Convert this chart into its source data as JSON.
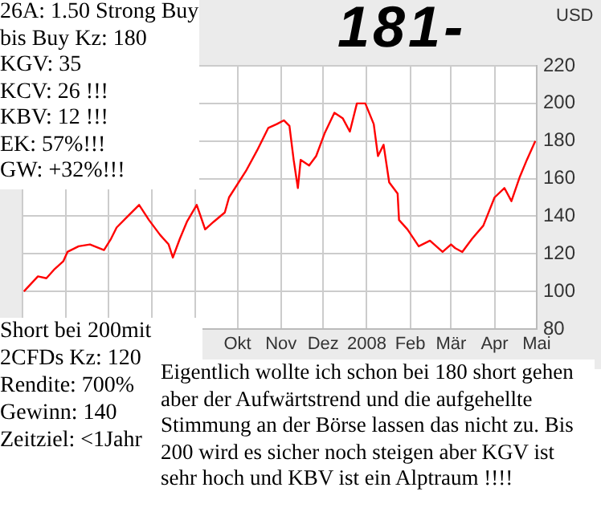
{
  "chart_data": {
    "type": "line",
    "ylabel": "USD",
    "color": "#ff0000",
    "marker": "none",
    "grid": true,
    "x": [
      "2007-05-02",
      "2007-05-12",
      "2007-05-18",
      "2007-05-24",
      "2007-05-30",
      "2007-06-02",
      "2007-06-10",
      "2007-06-18",
      "2007-06-28",
      "2007-07-03",
      "2007-07-07",
      "2007-07-15",
      "2007-07-23",
      "2007-07-30",
      "2007-08-07",
      "2007-08-13",
      "2007-08-16",
      "2007-08-21",
      "2007-08-26",
      "2007-09-02",
      "2007-09-08",
      "2007-09-14",
      "2007-09-22",
      "2007-09-25",
      "2007-10-07",
      "2007-10-15",
      "2007-10-23",
      "2007-10-29",
      "2007-11-03",
      "2007-11-07",
      "2007-11-10",
      "2007-11-13",
      "2007-11-15",
      "2007-11-21",
      "2007-11-26",
      "2007-12-02",
      "2007-12-09",
      "2007-12-15",
      "2007-12-20",
      "2007-12-25",
      "2007-12-31",
      "2008-01-06",
      "2008-01-09",
      "2008-01-13",
      "2008-01-17",
      "2008-01-23",
      "2008-01-24",
      "2008-01-30",
      "2008-02-07",
      "2008-02-15",
      "2008-02-24",
      "2008-03-01",
      "2008-03-04",
      "2008-03-09",
      "2008-03-16",
      "2008-03-24",
      "2008-04-01",
      "2008-04-08",
      "2008-04-13",
      "2008-04-19",
      "2008-04-24",
      "2008-04-30"
    ],
    "values": [
      100,
      108,
      107,
      112,
      116,
      121,
      124,
      125,
      122,
      128,
      134,
      140,
      146,
      138,
      130,
      125,
      118,
      128,
      137,
      146,
      133,
      137,
      142,
      150,
      164,
      175,
      187,
      189,
      191,
      188,
      170,
      155,
      170,
      167,
      172,
      184,
      195,
      192,
      185,
      200,
      200,
      189,
      172,
      178,
      158,
      152,
      138,
      133,
      124,
      127,
      121,
      125,
      123,
      121,
      128,
      135,
      150,
      155,
      148,
      161,
      170,
      180
    ],
    "xlim": [
      "2007-05-01",
      "2008-05-01"
    ],
    "xticks": [
      {
        "value": "2007-05-01",
        "label": null
      },
      {
        "value": "2007-06-01",
        "label": null
      },
      {
        "value": "2007-07-01",
        "label": null
      },
      {
        "value": "2007-08-01",
        "label": null
      },
      {
        "value": "2007-09-01",
        "label": null
      },
      {
        "value": "2007-10-01",
        "label": "Okt"
      },
      {
        "value": "2007-11-01",
        "label": "Nov"
      },
      {
        "value": "2007-12-01",
        "label": "Dez"
      },
      {
        "value": "2008-01-01",
        "label": "2008"
      },
      {
        "value": "2008-02-01",
        "label": "Feb"
      },
      {
        "value": "2008-03-01",
        "label": "Mär"
      },
      {
        "value": "2008-04-01",
        "label": "Apr"
      },
      {
        "value": "2008-05-01",
        "label": "Mai"
      }
    ],
    "ylim": [
      80,
      220
    ],
    "yticks": [
      80,
      100,
      120,
      140,
      160,
      180,
      200,
      220
    ],
    "annotations": [
      "26A: 1.50 Strong Buy\nbis Buy Kz: 180\nKGV: 35\nKCV: 26 !!!\nKBV: 12 !!!\nEK: 57%!!!\nGW: +32%!!!",
      "181-",
      "Short bei 200mit\n2CFDs Kz: 120\nRendite: 700%\nGewinn: 140\nZeitziel: <1Jahr",
      "Eigentlich wollte ich schon bei 180 short gehen aber der Aufwärtstrend und die aufgehellte Stimmung an der Börse lassen das nicht zu. Bis 200 wird es sicher noch steigen aber KGV ist sehr hoch und KBV ist ein Alptraum !!!!"
    ]
  }
}
